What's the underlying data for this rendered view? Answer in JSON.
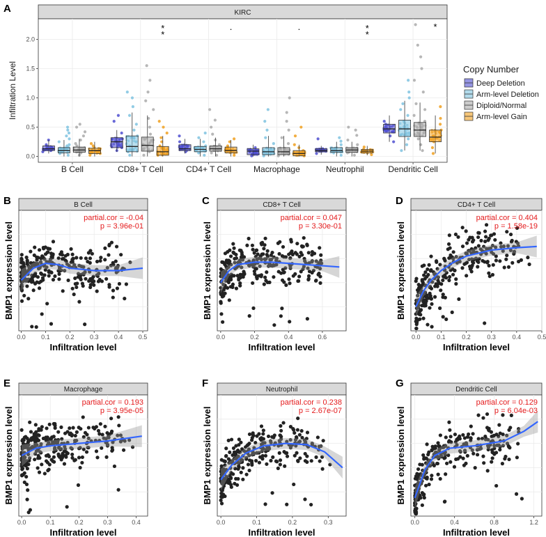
{
  "chart_data": [
    {
      "type": "box",
      "panel_label": "A",
      "title": "KIRC",
      "ylabel": "Infiltration Level",
      "ylim": [
        -0.1,
        2.35
      ],
      "yticks": [
        "0.0",
        "0.5",
        "1.0",
        "1.5",
        "2.0"
      ],
      "legend_title": "Copy Number",
      "legend_position": "right",
      "groups": [
        {
          "name": "Deep Deletion",
          "color": "#4f4fd0"
        },
        {
          "name": "Arm-level Deletion",
          "color": "#7fc3e0"
        },
        {
          "name": "Diploid/Normal",
          "color": "#aaaaaa"
        },
        {
          "name": "Arm-level Gain",
          "color": "#f0a020"
        }
      ],
      "categories": [
        "B Cell",
        "CD8+ T Cell",
        "CD4+ T Cell",
        "Macrophage",
        "Neutrophil",
        "Dendritic Cell"
      ],
      "significance": [
        "",
        "**",
        ".",
        ".",
        "**",
        "*"
      ],
      "boxes": [
        [
          [
            0.05,
            0.1,
            0.13,
            0.18,
            0.28
          ],
          [
            0.0,
            0.06,
            0.1,
            0.15,
            0.28
          ],
          [
            0.0,
            0.07,
            0.11,
            0.16,
            0.3
          ],
          [
            0.0,
            0.05,
            0.1,
            0.14,
            0.25
          ]
        ],
        [
          [
            0.08,
            0.15,
            0.25,
            0.32,
            0.45
          ],
          [
            0.0,
            0.08,
            0.17,
            0.35,
            0.75
          ],
          [
            0.0,
            0.09,
            0.19,
            0.33,
            0.7
          ],
          [
            0.0,
            0.02,
            0.08,
            0.17,
            0.35
          ]
        ],
        [
          [
            0.05,
            0.1,
            0.13,
            0.2,
            0.3
          ],
          [
            0.0,
            0.08,
            0.12,
            0.17,
            0.3
          ],
          [
            0.0,
            0.09,
            0.13,
            0.18,
            0.32
          ],
          [
            0.0,
            0.06,
            0.1,
            0.16,
            0.28
          ]
        ],
        [
          [
            0.0,
            0.03,
            0.09,
            0.13,
            0.2
          ],
          [
            0.0,
            0.03,
            0.08,
            0.15,
            0.35
          ],
          [
            0.0,
            0.03,
            0.08,
            0.15,
            0.35
          ],
          [
            0.0,
            0.01,
            0.05,
            0.1,
            0.2
          ]
        ],
        [
          [
            0.03,
            0.08,
            0.1,
            0.13,
            0.18
          ],
          [
            0.0,
            0.07,
            0.1,
            0.15,
            0.25
          ],
          [
            0.0,
            0.07,
            0.11,
            0.15,
            0.25
          ],
          [
            0.02,
            0.06,
            0.09,
            0.12,
            0.18
          ]
        ],
        [
          [
            0.25,
            0.4,
            0.47,
            0.55,
            0.7
          ],
          [
            0.1,
            0.34,
            0.47,
            0.62,
            0.95
          ],
          [
            0.1,
            0.34,
            0.45,
            0.58,
            0.92
          ],
          [
            0.05,
            0.25,
            0.33,
            0.45,
            0.7
          ]
        ]
      ],
      "points": [
        [
          [
            0.08,
            0.15,
            0.2,
            0.28,
            0.1,
            0.12
          ],
          [
            0.02,
            0.05,
            0.08,
            0.1,
            0.12,
            0.15,
            0.18,
            0.2,
            0.25,
            0.3,
            0.35,
            0.4,
            0.45,
            0.5
          ],
          [
            0.02,
            0.06,
            0.08,
            0.1,
            0.12,
            0.14,
            0.18,
            0.22,
            0.28,
            0.35,
            0.42,
            0.5,
            0.55
          ],
          [
            0.02,
            0.05,
            0.08,
            0.1,
            0.12,
            0.15,
            0.18,
            0.22
          ]
        ],
        [
          [
            0.1,
            0.2,
            0.3,
            0.4,
            0.6,
            0.7,
            0.15
          ],
          [
            0.02,
            0.08,
            0.12,
            0.18,
            0.25,
            0.35,
            0.45,
            0.55,
            0.7,
            0.85,
            1.0,
            1.1
          ],
          [
            0.02,
            0.08,
            0.12,
            0.2,
            0.28,
            0.38,
            0.5,
            0.65,
            0.8,
            0.95,
            1.1,
            1.3,
            1.55
          ],
          [
            0.02,
            0.05,
            0.08,
            0.12,
            0.18,
            0.25,
            0.32,
            0.4,
            0.5,
            0.6
          ]
        ],
        [
          [
            0.08,
            0.12,
            0.18,
            0.35,
            0.25
          ],
          [
            0.02,
            0.06,
            0.1,
            0.14,
            0.18,
            0.25,
            0.32,
            0.4
          ],
          [
            0.02,
            0.06,
            0.1,
            0.14,
            0.2,
            0.28,
            0.38,
            0.5,
            0.62,
            0.8
          ],
          [
            0.02,
            0.06,
            0.1,
            0.14,
            0.18,
            0.25,
            0.3
          ]
        ],
        [
          [
            0.01,
            0.05,
            0.1,
            0.15,
            0.08
          ],
          [
            0.01,
            0.04,
            0.08,
            0.14,
            0.22,
            0.32,
            0.45,
            0.6,
            0.8
          ],
          [
            0.01,
            0.04,
            0.08,
            0.14,
            0.22,
            0.32,
            0.45,
            0.6,
            0.75,
            1.0
          ],
          [
            0.01,
            0.03,
            0.06,
            0.1,
            0.15,
            0.2,
            0.35,
            0.5
          ]
        ],
        [
          [
            0.05,
            0.1,
            0.13,
            0.3
          ],
          [
            0.02,
            0.06,
            0.1,
            0.14,
            0.2,
            0.26,
            0.32
          ],
          [
            0.02,
            0.06,
            0.1,
            0.14,
            0.2,
            0.28,
            0.36,
            0.45,
            0.5
          ],
          [
            0.03,
            0.06,
            0.09,
            0.12,
            0.16
          ]
        ],
        [
          [
            0.25,
            0.35,
            0.45,
            0.55,
            0.6
          ],
          [
            0.1,
            0.2,
            0.3,
            0.4,
            0.5,
            0.6,
            0.7,
            0.8,
            0.9,
            1.0,
            1.1,
            1.3
          ],
          [
            0.1,
            0.2,
            0.3,
            0.4,
            0.5,
            0.6,
            0.7,
            0.8,
            0.9,
            1.1,
            1.3,
            1.5,
            1.7,
            1.9,
            2.25
          ],
          [
            0.05,
            0.15,
            0.25,
            0.35,
            0.45,
            0.55,
            0.65,
            0.85
          ]
        ]
      ]
    },
    {
      "type": "scatter",
      "panel_label": "B",
      "title": "B Cell",
      "xlabel": "Infiltration level",
      "ylabel": "BMP1 expression level",
      "stat1": "partial.cor = -0.04",
      "stat2": "p = 3.96e-01",
      "xticks": [
        "0.0",
        "0.1",
        "0.2",
        "0.3",
        "0.4",
        "0.5"
      ],
      "xlim": [
        -0.01,
        0.52
      ],
      "xmax_pts": 0.5,
      "seed": 11,
      "ymid": 0.55,
      "spread": 0.2,
      "fit": [
        [
          0.0,
          0.42
        ],
        [
          0.05,
          0.52
        ],
        [
          0.1,
          0.56
        ],
        [
          0.15,
          0.55
        ],
        [
          0.2,
          0.52
        ],
        [
          0.3,
          0.5
        ],
        [
          0.4,
          0.5
        ],
        [
          0.5,
          0.52
        ]
      ]
    },
    {
      "type": "scatter",
      "panel_label": "C",
      "title": "CD8+ T Cell",
      "xlabel": "Infiltration level",
      "ylabel": "BMP1 expression level",
      "stat1": "partial.cor = 0.047",
      "stat2": "p = 3.30e-01",
      "xticks": [
        "0.0",
        "0.2",
        "0.4",
        "0.6"
      ],
      "xlim": [
        -0.02,
        0.74
      ],
      "xmax_pts": 0.7,
      "seed": 23,
      "ymid": 0.55,
      "spread": 0.2,
      "fit": [
        [
          0.0,
          0.4
        ],
        [
          0.05,
          0.5
        ],
        [
          0.1,
          0.55
        ],
        [
          0.2,
          0.57
        ],
        [
          0.3,
          0.57
        ],
        [
          0.4,
          0.56
        ],
        [
          0.5,
          0.55
        ],
        [
          0.6,
          0.54
        ],
        [
          0.7,
          0.53
        ]
      ]
    },
    {
      "type": "scatter",
      "panel_label": "D",
      "title": "CD4+ T Cell",
      "xlabel": "Infiltration level",
      "ylabel": "BMP1 expression level",
      "stat1": "partial.cor = 0.404",
      "stat2": "p = 1.58e-19",
      "xticks": [
        "0.0",
        "0.1",
        "0.2",
        "0.3",
        "0.4",
        "0.5"
      ],
      "xlim": [
        -0.02,
        0.5
      ],
      "xmax_pts": 0.48,
      "seed": 37,
      "ymid": 0.55,
      "spread": 0.2,
      "fit": [
        [
          0.0,
          0.2
        ],
        [
          0.03,
          0.33
        ],
        [
          0.06,
          0.42
        ],
        [
          0.1,
          0.5
        ],
        [
          0.15,
          0.57
        ],
        [
          0.2,
          0.62
        ],
        [
          0.3,
          0.67
        ],
        [
          0.4,
          0.69
        ],
        [
          0.48,
          0.7
        ]
      ]
    },
    {
      "type": "scatter",
      "panel_label": "E",
      "title": "Macrophage",
      "xlabel": "Infiltration level",
      "ylabel": "BMP1 expression level",
      "stat1": "partial.cor = 0.193",
      "stat2": "p = 3.95e-05",
      "xticks": [
        "0.0",
        "0.1",
        "0.2",
        "0.3",
        "0.4"
      ],
      "xlim": [
        -0.01,
        0.44
      ],
      "xmax_pts": 0.42,
      "seed": 41,
      "ymid": 0.55,
      "spread": 0.2,
      "fit": [
        [
          0.0,
          0.5
        ],
        [
          0.05,
          0.56
        ],
        [
          0.1,
          0.58
        ],
        [
          0.2,
          0.6
        ],
        [
          0.3,
          0.62
        ],
        [
          0.42,
          0.66
        ]
      ]
    },
    {
      "type": "scatter",
      "panel_label": "F",
      "title": "Neutrophil",
      "xlabel": "Infiltration level",
      "ylabel": "BMP1 expression level",
      "stat1": "partial.cor = 0.238",
      "stat2": "p = 2.67e-07",
      "xticks": [
        "0.0",
        "0.1",
        "0.2",
        "0.3"
      ],
      "xlim": [
        -0.01,
        0.35
      ],
      "xmax_pts": 0.34,
      "seed": 53,
      "ymid": 0.55,
      "spread": 0.2,
      "fit": [
        [
          0.0,
          0.3
        ],
        [
          0.03,
          0.42
        ],
        [
          0.07,
          0.52
        ],
        [
          0.12,
          0.58
        ],
        [
          0.18,
          0.6
        ],
        [
          0.24,
          0.59
        ],
        [
          0.29,
          0.53
        ],
        [
          0.34,
          0.4
        ]
      ]
    },
    {
      "type": "scatter",
      "panel_label": "G",
      "title": "Dendritic Cell",
      "xlabel": "Infiltration level",
      "ylabel": "BMP1 expression level",
      "stat1": "partial.cor = 0.129",
      "stat2": "p = 6.04e-03",
      "xticks": [
        "0.0",
        "0.4",
        "0.8",
        "1.2"
      ],
      "xlim": [
        -0.04,
        1.28
      ],
      "xmax_pts": 1.24,
      "seed": 67,
      "ymid": 0.55,
      "spread": 0.2,
      "fit": [
        [
          0.0,
          0.15
        ],
        [
          0.1,
          0.38
        ],
        [
          0.2,
          0.5
        ],
        [
          0.35,
          0.56
        ],
        [
          0.6,
          0.58
        ],
        [
          0.9,
          0.62
        ],
        [
          1.1,
          0.7
        ],
        [
          1.24,
          0.78
        ]
      ]
    }
  ]
}
